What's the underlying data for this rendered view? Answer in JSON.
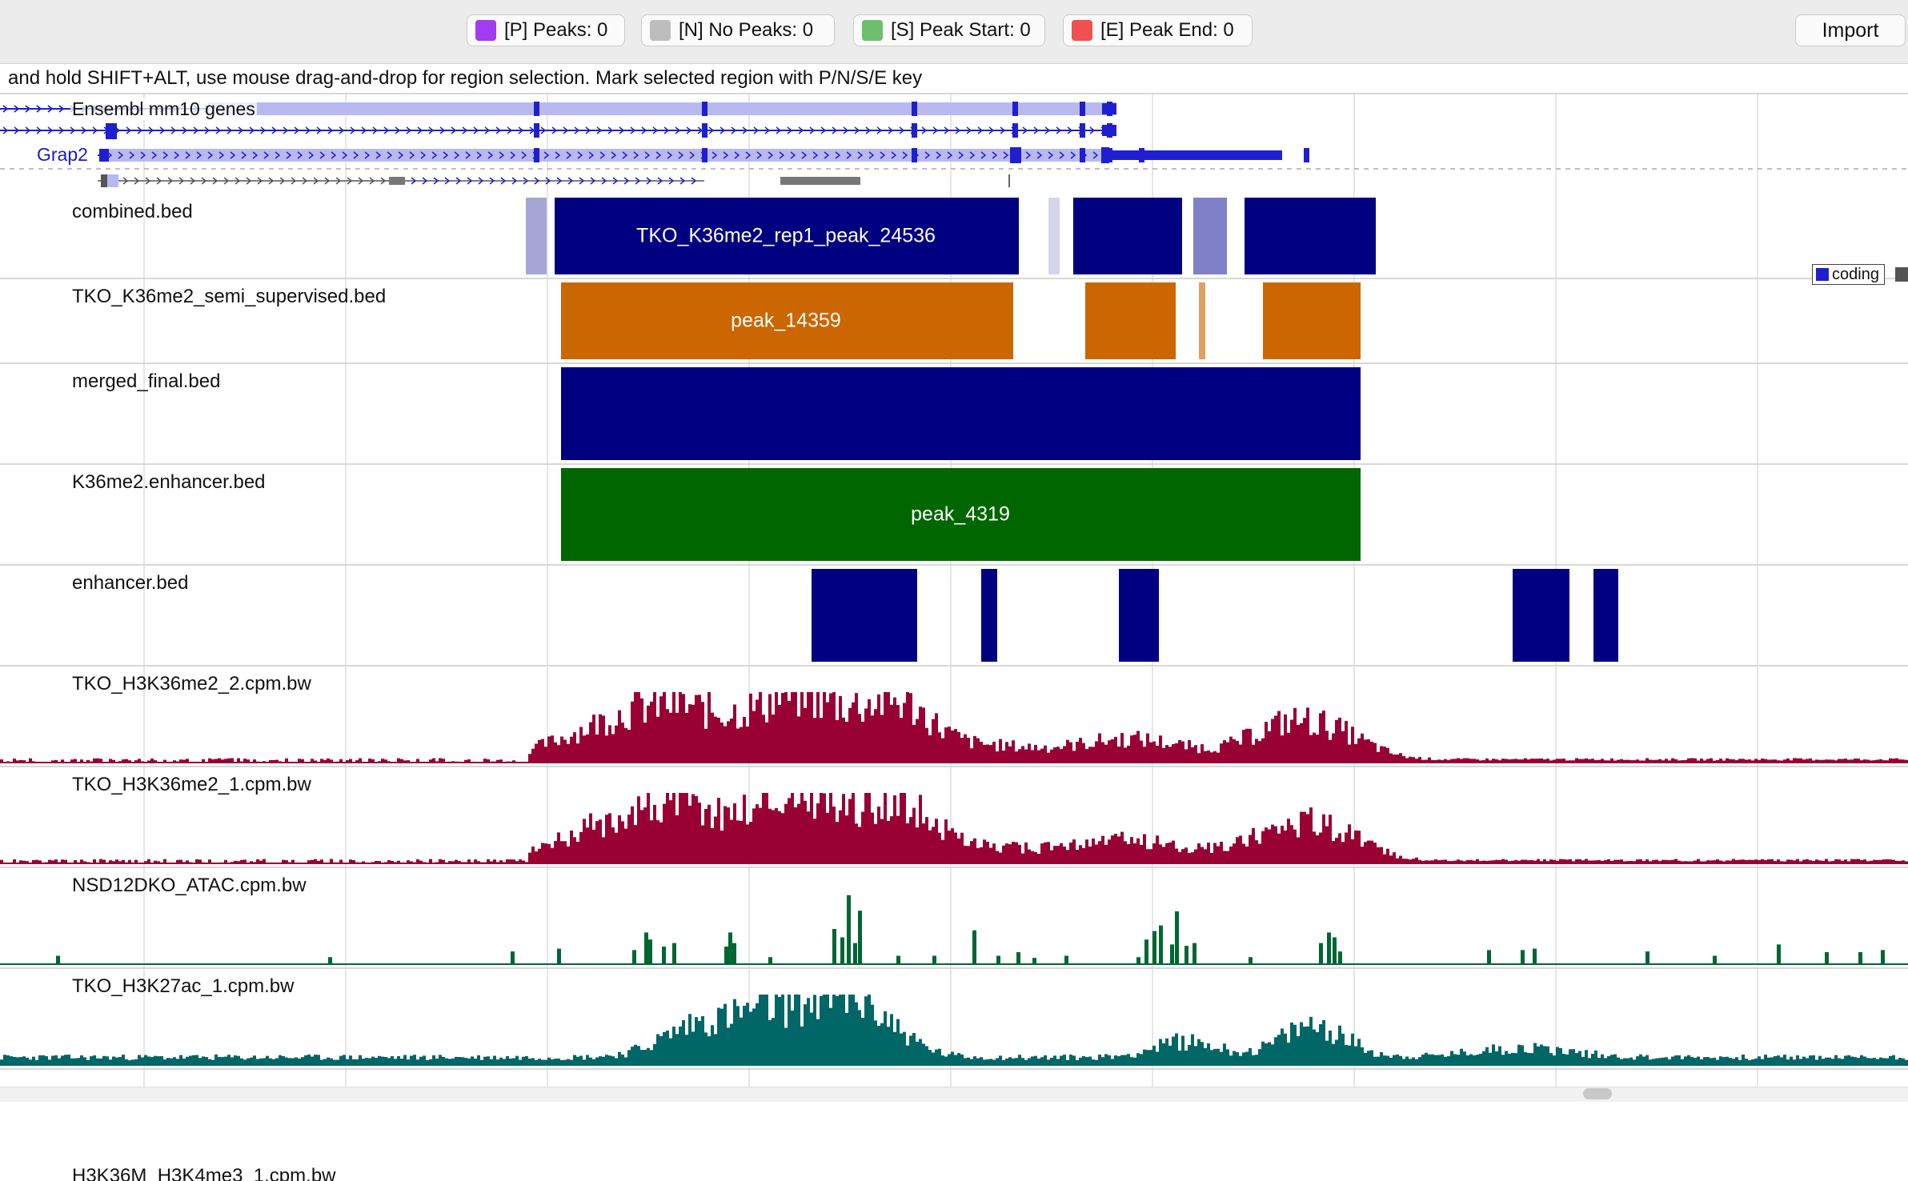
{
  "toolbar": {
    "buttons": [
      {
        "id": "P",
        "label": "[P] Peaks: 0",
        "color": "#a33cf0"
      },
      {
        "id": "N",
        "label": "[N] No Peaks: 0",
        "color": "#bdbdbd"
      },
      {
        "id": "S",
        "label": "[S] Peak Start: 0",
        "color": "#6cbf6c"
      },
      {
        "id": "E",
        "label": "[E] Peak End: 0",
        "color": "#f05050"
      }
    ],
    "import_label": "Import"
  },
  "hint": "and hold SHIFT+ALT, use mouse drag-and-drop for region selection. Mark selected region with P/N/S/E key",
  "genes_track": {
    "label": "Ensembl mm10 genes",
    "gene_name": "Grap2",
    "legend_coding": "coding",
    "colors": {
      "coding": "#1f1fd0",
      "exon_light": "#b9b9f0",
      "noncoding": "#555555"
    }
  },
  "tracks": [
    {
      "id": "combined",
      "label": "combined.bed",
      "type": "bed",
      "feature_label": "TKO_K36me2_rep1_peak_24536",
      "colors": {
        "main": "#000080",
        "faded": "#a6a6d6",
        "lighter": "#d4d4ec",
        "mid": "#8080c8"
      }
    },
    {
      "id": "semi",
      "label": "TKO_K36me2_semi_supervised.bed",
      "type": "bed",
      "feature_label": "peak_14359",
      "colors": {
        "main": "#cc6600",
        "faded": "#e0a060"
      }
    },
    {
      "id": "merged",
      "label": "merged_final.bed",
      "type": "bed",
      "feature_label": "",
      "colors": {
        "main": "#000080"
      }
    },
    {
      "id": "enhancer36",
      "label": "K36me2.enhancer.bed",
      "type": "bed",
      "feature_label": "peak_4319",
      "colors": {
        "main": "#006600"
      }
    },
    {
      "id": "enhancer",
      "label": "enhancer.bed",
      "type": "bed",
      "feature_label": "",
      "colors": {
        "main": "#000080"
      }
    },
    {
      "id": "k36_2",
      "label": "TKO_H3K36me2_2.cpm.bw",
      "type": "bigwig",
      "colors": {
        "main": "#990033"
      }
    },
    {
      "id": "k36_1",
      "label": "TKO_H3K36me2_1.cpm.bw",
      "type": "bigwig",
      "colors": {
        "main": "#990033"
      }
    },
    {
      "id": "atac",
      "label": "NSD12DKO_ATAC.cpm.bw",
      "type": "bigwig",
      "colors": {
        "main": "#006633"
      }
    },
    {
      "id": "k27ac",
      "label": "TKO_H3K27ac_1.cpm.bw",
      "type": "bigwig",
      "colors": {
        "main": "#006666"
      }
    }
  ]
}
